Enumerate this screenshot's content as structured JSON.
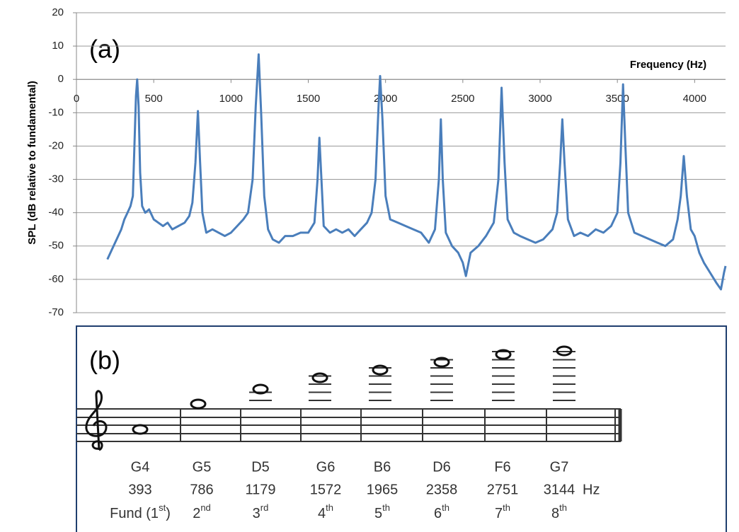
{
  "chart_data": {
    "type": "line",
    "annotation": "(a)",
    "x_label": "Frequency (Hz)",
    "y_label": "SPL (dB relative to fundamental)",
    "xlim": [
      0,
      4200
    ],
    "ylim": [
      -70,
      20
    ],
    "xticks": [
      0,
      500,
      1000,
      1500,
      2000,
      2500,
      3000,
      3500,
      4000
    ],
    "yticks": [
      -70,
      -60,
      -50,
      -40,
      -30,
      -20,
      -10,
      0,
      10,
      20
    ],
    "grid": true,
    "series": [
      {
        "color": "#4a7ebb",
        "x": [
          200,
          230,
          260,
          290,
          310,
          330,
          350,
          365,
          375,
          385,
          393,
          402,
          412,
          425,
          445,
          470,
          500,
          530,
          560,
          590,
          620,
          660,
          700,
          730,
          750,
          770,
          786,
          800,
          815,
          840,
          880,
          920,
          960,
          1000,
          1040,
          1080,
          1110,
          1140,
          1160,
          1179,
          1195,
          1215,
          1240,
          1270,
          1310,
          1350,
          1400,
          1450,
          1500,
          1540,
          1560,
          1572,
          1585,
          1600,
          1640,
          1680,
          1720,
          1760,
          1800,
          1840,
          1880,
          1910,
          1935,
          1955,
          1965,
          1980,
          2000,
          2030,
          2080,
          2130,
          2180,
          2230,
          2280,
          2320,
          2345,
          2358,
          2370,
          2390,
          2430,
          2470,
          2500,
          2520,
          2550,
          2600,
          2650,
          2700,
          2730,
          2751,
          2770,
          2790,
          2830,
          2870,
          2920,
          2970,
          3020,
          3080,
          3110,
          3130,
          3144,
          3158,
          3180,
          3220,
          3260,
          3310,
          3360,
          3410,
          3460,
          3500,
          3520,
          3537,
          3552,
          3570,
          3610,
          3660,
          3710,
          3760,
          3810,
          3860,
          3890,
          3910,
          3930,
          3950,
          3975,
          4000,
          4030,
          4060,
          4100,
          4140,
          4170,
          4190,
          4200
        ],
        "values": [
          -54,
          -51,
          -48,
          -45,
          -42,
          -40,
          -38,
          -35,
          -20,
          -5,
          0,
          -8,
          -28,
          -38,
          -40,
          -39,
          -42,
          -43,
          -44,
          -43,
          -45,
          -44,
          -43,
          -41,
          -37,
          -25,
          -9.5,
          -25,
          -40,
          -46,
          -45,
          -46,
          -47,
          -46,
          -44,
          -42,
          -40,
          -30,
          -8,
          7.5,
          -10,
          -35,
          -45,
          -48,
          -49,
          -47,
          -47,
          -46,
          -46,
          -43,
          -30,
          -17.5,
          -30,
          -44,
          -46,
          -45,
          -46,
          -45,
          -47,
          -45,
          -43,
          -40,
          -30,
          -8,
          1,
          -12,
          -35,
          -42,
          -43,
          -44,
          -45,
          -46,
          -49,
          -45,
          -30,
          -12,
          -30,
          -46,
          -50,
          -52,
          -55,
          -59,
          -52,
          -50,
          -47,
          -43,
          -30,
          -2.5,
          -25,
          -42,
          -46,
          -47,
          -48,
          -49,
          -48,
          -45,
          -40,
          -25,
          -12,
          -25,
          -42,
          -47,
          -46,
          -47,
          -45,
          -46,
          -44,
          -40,
          -25,
          -1.5,
          -20,
          -40,
          -46,
          -47,
          -48,
          -49,
          -50,
          -48,
          -42,
          -35,
          -23,
          -35,
          -45,
          -47,
          -52,
          -55,
          -58,
          -61,
          -63,
          -58,
          -56
        ]
      }
    ]
  },
  "diagram": {
    "label": "(b)",
    "notes": [
      {
        "name": "G4",
        "freq": "393",
        "harmonic": [
          "Fund (1",
          "st",
          ")"
        ]
      },
      {
        "name": "G5",
        "freq": "786",
        "harmonic": [
          "2",
          "nd",
          ""
        ]
      },
      {
        "name": "D5",
        "freq": "1179",
        "harmonic": [
          "3",
          "rd",
          ""
        ]
      },
      {
        "name": "G6",
        "freq": "1572",
        "harmonic": [
          "4",
          "th",
          ""
        ]
      },
      {
        "name": "B6",
        "freq": "1965",
        "harmonic": [
          "5",
          "th",
          ""
        ]
      },
      {
        "name": "D6",
        "freq": "2358",
        "harmonic": [
          "6",
          "th",
          ""
        ]
      },
      {
        "name": "F6",
        "freq": "2751",
        "harmonic": [
          "7",
          "th",
          ""
        ]
      },
      {
        "name": "G7",
        "freq": "3144",
        "harmonic": [
          "8",
          "th",
          ""
        ]
      }
    ],
    "unit": "Hz"
  }
}
